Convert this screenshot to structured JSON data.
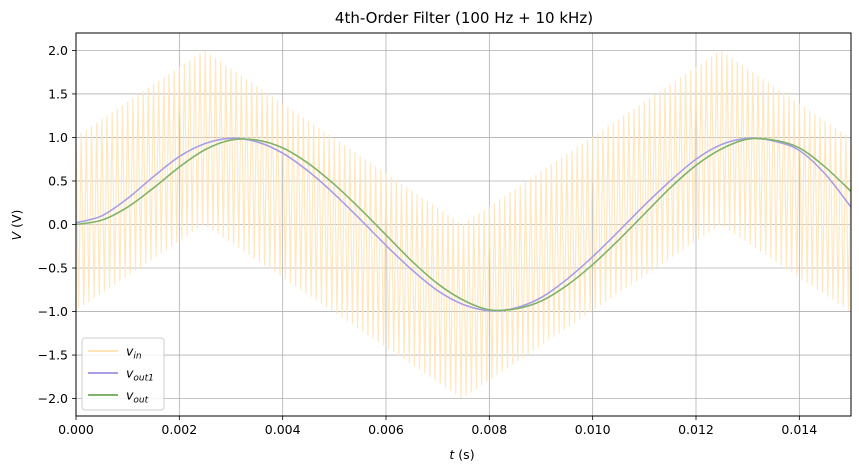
{
  "chart_data": {
    "type": "line",
    "title": "4th-Order Filter (100 Hz + 10 kHz)",
    "xlabel": "t (s)",
    "ylabel": "V (V)",
    "xlim": [
      0,
      0.015
    ],
    "ylim": [
      -2.2,
      2.2
    ],
    "x_ticks": [
      0.0,
      0.002,
      0.004,
      0.006,
      0.008,
      0.01,
      0.012,
      0.014
    ],
    "x_tick_labels": [
      "0.000",
      "0.002",
      "0.004",
      "0.006",
      "0.008",
      "0.010",
      "0.012",
      "0.014"
    ],
    "y_ticks": [
      -2.0,
      -1.5,
      -1.0,
      -0.5,
      0.0,
      0.5,
      1.0,
      1.5,
      2.0
    ],
    "y_tick_labels": [
      "−2.0",
      "−1.5",
      "−1.0",
      "−0.5",
      "0.0",
      "0.5",
      "1.0",
      "1.5",
      "2.0"
    ],
    "grid": true,
    "legend_position": "lower-left",
    "series": [
      {
        "name": "v_in",
        "legend_main": "v",
        "legend_sub": "in",
        "color": "#ffe4b5",
        "components": "sin(2π·100·t) + sin(2π·10000·t)",
        "t": [
          0.0,
          0.0025,
          0.005,
          0.0075,
          0.01,
          0.0125,
          0.015
        ],
        "low_envelope": [
          -1.0,
          0.0,
          -1.0,
          -2.0,
          -1.0,
          0.0,
          -1.0
        ],
        "high_envelope": [
          1.0,
          2.0,
          1.0,
          0.0,
          1.0,
          2.0,
          1.0
        ]
      },
      {
        "name": "v_out1",
        "legend_main": "v",
        "legend_sub": "out1",
        "color": "#a89ee8",
        "t": [
          0.0,
          0.0005,
          0.001,
          0.0015,
          0.002,
          0.0025,
          0.003,
          0.0035,
          0.004,
          0.0045,
          0.005,
          0.0055,
          0.006,
          0.0065,
          0.007,
          0.0075,
          0.008,
          0.0085,
          0.009,
          0.0095,
          0.01,
          0.0105,
          0.011,
          0.0115,
          0.012,
          0.0125,
          0.013,
          0.0135,
          0.014,
          0.0145,
          0.015
        ],
        "v": [
          0.02,
          0.1,
          0.3,
          0.55,
          0.78,
          0.93,
          0.99,
          0.95,
          0.82,
          0.61,
          0.35,
          0.06,
          -0.24,
          -0.52,
          -0.76,
          -0.92,
          -0.99,
          -0.96,
          -0.84,
          -0.63,
          -0.37,
          -0.08,
          0.22,
          0.5,
          0.75,
          0.92,
          0.99,
          0.96,
          0.85,
          0.58,
          0.2
        ]
      },
      {
        "name": "v_out",
        "legend_main": "v",
        "legend_sub": "out",
        "color": "#7fb46a",
        "t": [
          0.0,
          0.0005,
          0.001,
          0.0015,
          0.002,
          0.0025,
          0.003,
          0.0035,
          0.004,
          0.0045,
          0.005,
          0.0055,
          0.006,
          0.0065,
          0.007,
          0.0075,
          0.008,
          0.0085,
          0.009,
          0.0095,
          0.01,
          0.0105,
          0.011,
          0.0115,
          0.012,
          0.0125,
          0.013,
          0.0135,
          0.014,
          0.0145,
          0.015
        ],
        "v": [
          0.0,
          0.05,
          0.2,
          0.42,
          0.66,
          0.86,
          0.97,
          0.97,
          0.88,
          0.7,
          0.46,
          0.18,
          -0.12,
          -0.42,
          -0.68,
          -0.87,
          -0.98,
          -0.97,
          -0.88,
          -0.7,
          -0.46,
          -0.18,
          0.12,
          0.42,
          0.68,
          0.87,
          0.98,
          0.97,
          0.88,
          0.66,
          0.38
        ]
      }
    ]
  }
}
